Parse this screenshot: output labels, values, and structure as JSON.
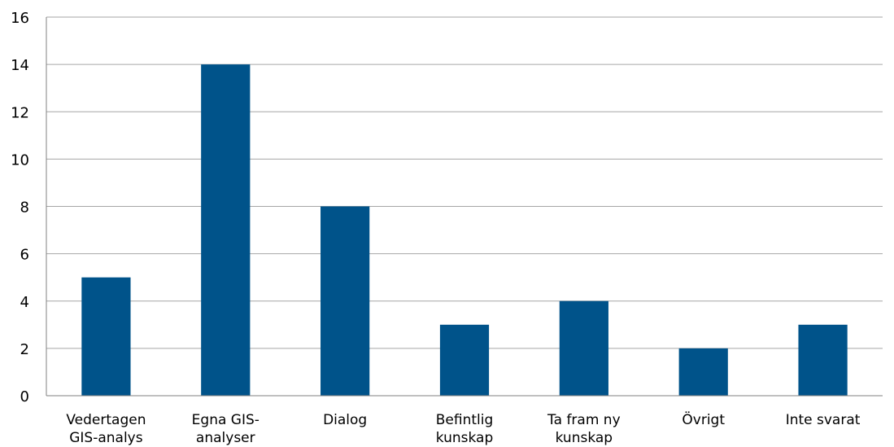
{
  "chart_data": {
    "type": "bar",
    "title": "",
    "xlabel": "",
    "ylabel": "",
    "categories": [
      [
        "Vedertagen",
        "GIS-analys"
      ],
      [
        "Egna GIS-",
        "analyser"
      ],
      [
        "Dialog"
      ],
      [
        "Befintlig",
        "kunskap"
      ],
      [
        "Ta fram ny",
        "kunskap"
      ],
      [
        "Övrigt"
      ],
      [
        "Inte svarat"
      ]
    ],
    "values": [
      5,
      14,
      8,
      3,
      4,
      2,
      3
    ],
    "ylim": [
      0,
      16
    ],
    "yticks": [
      0,
      2,
      4,
      6,
      8,
      10,
      12,
      14,
      16
    ],
    "grid": true,
    "legend": "none",
    "colors": {
      "bar": "#00538A",
      "grid": "#A6A6A6",
      "axis": "#808080"
    }
  }
}
